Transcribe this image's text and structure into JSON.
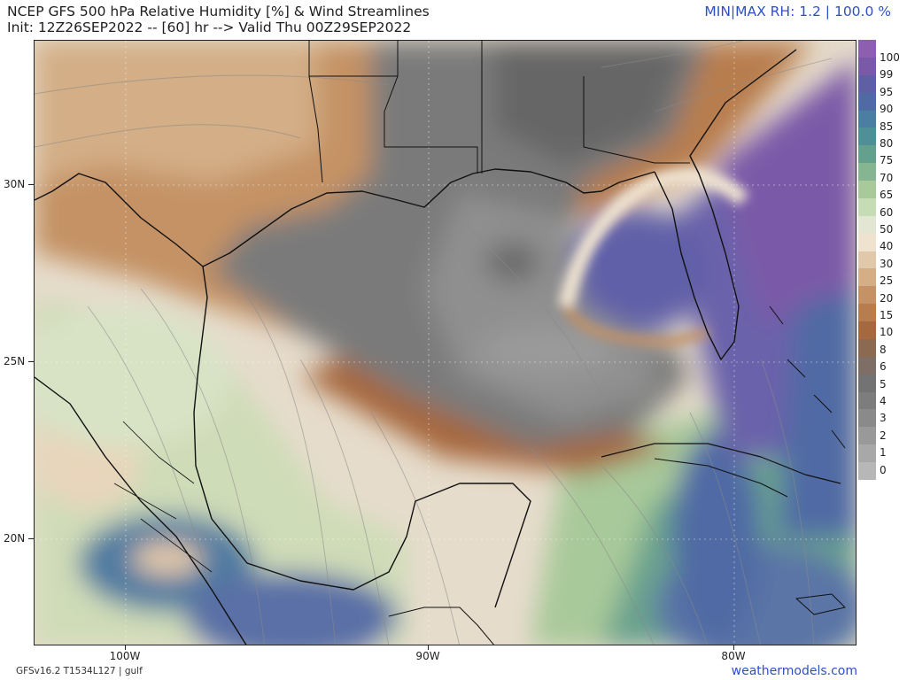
{
  "header": {
    "title_line1": "NCEP GFS 500 hPa Relative Humidity [%] & Wind Streamlines",
    "title_line2": "Init: 12Z26SEP2022 -- [60] hr --> Valid Thu 00Z29SEP2022",
    "minmax": "MIN|MAX RH: 1.2 | 100.0 %"
  },
  "axes": {
    "lat_labels": [
      "30N",
      "25N",
      "20N"
    ],
    "lon_labels": [
      "100W",
      "90W",
      "80W"
    ]
  },
  "colorbar": {
    "labels": [
      "100",
      "99",
      "95",
      "90",
      "85",
      "80",
      "75",
      "70",
      "65",
      "60",
      "50",
      "40",
      "30",
      "25",
      "20",
      "15",
      "10",
      "8",
      "6",
      "5",
      "4",
      "3",
      "2",
      "1",
      "0"
    ],
    "colors": [
      "#8e5fb0",
      "#7a5aa8",
      "#5f5fa6",
      "#4f6aa4",
      "#4a7fa2",
      "#4f8f98",
      "#63a08e",
      "#86b591",
      "#a8c99a",
      "#c6dcb4",
      "#e4e6d4",
      "#efe3d0",
      "#e1c8aa",
      "#d3ae86",
      "#c49265",
      "#b87d4e",
      "#a6683e",
      "#8c6a52",
      "#7e6e66",
      "#737373",
      "#7d7d7d",
      "#8a8a8a",
      "#999999",
      "#a8a8a8",
      "#b7b7b7"
    ]
  },
  "footer": {
    "model": "GFSv16.2 T1534L127 | gulf",
    "site": "weathermodels.com"
  }
}
